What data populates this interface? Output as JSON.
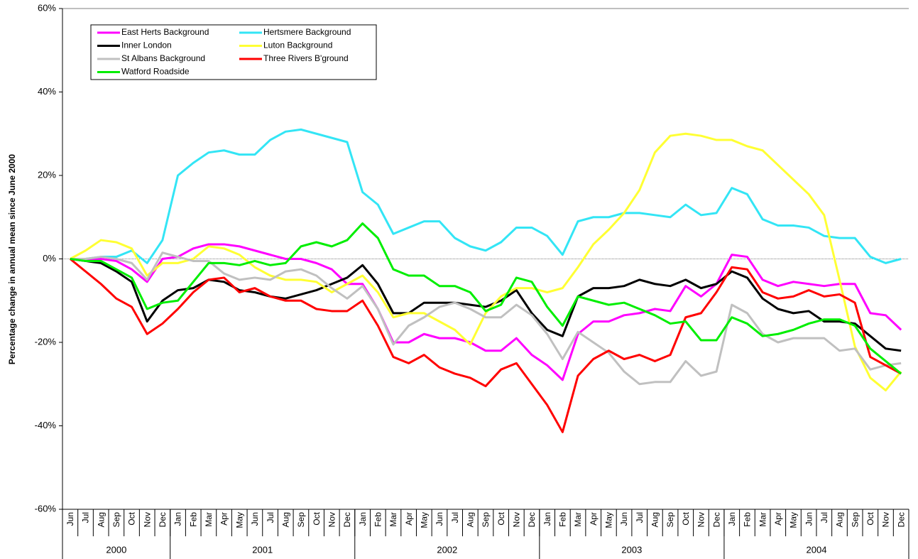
{
  "chart_data": {
    "type": "line",
    "y_label": "Percentage change in annual mean since June 2000",
    "categories": [
      "Jun",
      "Jul",
      "Aug",
      "Sep",
      "Oct",
      "Nov",
      "Dec",
      "Jan",
      "Feb",
      "Mar",
      "Apr",
      "May",
      "Jun",
      "Jul",
      "Aug",
      "Sep",
      "Oct",
      "Nov",
      "Dec",
      "Jan",
      "Feb",
      "Mar",
      "Apr",
      "May",
      "Jun",
      "Jul",
      "Aug",
      "Sep",
      "Oct",
      "Nov",
      "Dec",
      "Jan",
      "Feb",
      "Mar",
      "Apr",
      "May",
      "Jun",
      "Jul",
      "Aug",
      "Sep",
      "Oct",
      "Nov",
      "Dec",
      "Jan",
      "Feb",
      "Mar",
      "Apr",
      "May",
      "Jun",
      "Jul",
      "Aug",
      "Sep",
      "Oct",
      "Nov",
      "Dec"
    ],
    "groups": [
      {
        "label": "2000",
        "span": 7
      },
      {
        "label": "2001",
        "span": 12
      },
      {
        "label": "2002",
        "span": 12
      },
      {
        "label": "2003",
        "span": 12
      },
      {
        "label": "2004",
        "span": 12
      }
    ],
    "ylim": [
      -60,
      60
    ],
    "yticks": [
      {
        "value": -60,
        "label": "-60%"
      },
      {
        "value": -40,
        "label": "-40%"
      },
      {
        "value": -20,
        "label": "-20%"
      },
      {
        "value": 0,
        "label": "0%"
      },
      {
        "value": 20,
        "label": "20%"
      },
      {
        "value": 40,
        "label": "40%"
      },
      {
        "value": 60,
        "label": "60%"
      }
    ],
    "legend_position": "upper left",
    "series": [
      {
        "name": "East Herts Background",
        "color": "#ff00ff",
        "values": [
          0,
          0,
          0,
          -0.5,
          -2.5,
          -5.5,
          0,
          0.5,
          2.5,
          3.5,
          3.5,
          3,
          2,
          1,
          0,
          0,
          -1,
          -2.5,
          -6,
          -6,
          -12,
          -20,
          -20,
          -18,
          -19,
          -19,
          -20,
          -22,
          -22,
          -19,
          -23,
          -25.5,
          -29,
          -18,
          -15,
          -15,
          -13.5,
          -13,
          -12,
          -12.5,
          -6.5,
          -9,
          -6,
          1,
          0.5,
          -5,
          -6.5,
          -5.5,
          -6,
          -6.5,
          -6,
          -6,
          -13,
          -13.5,
          -17
        ]
      },
      {
        "name": "Hertsmere Background",
        "color": "#33e5f5",
        "values": [
          0,
          0,
          0.5,
          0.5,
          2,
          -1,
          4.5,
          20,
          23,
          25.5,
          26,
          25,
          25,
          28.5,
          30.5,
          31,
          30,
          29,
          28,
          16,
          13,
          6,
          7.5,
          9,
          9,
          5,
          3,
          2,
          4,
          7.5,
          7.5,
          5.5,
          1,
          9,
          10,
          10,
          11,
          11,
          10.5,
          10,
          13,
          10.5,
          11,
          17,
          15.5,
          9.5,
          8,
          8,
          7.5,
          5.5,
          5,
          5,
          0.5,
          -1,
          0
        ]
      },
      {
        "name": "Inner London",
        "color": "#000000",
        "values": [
          0,
          -0.5,
          -1,
          -3,
          -5.5,
          -15,
          -10,
          -7.5,
          -7,
          -5,
          -5.5,
          -7.5,
          -8,
          -9,
          -9.5,
          -8.5,
          -7.5,
          -6,
          -4.5,
          -1.5,
          -6,
          -13,
          -13,
          -10.5,
          -10.5,
          -10.5,
          -11,
          -11.5,
          -10,
          -7.5,
          -13,
          -17,
          -18.5,
          -9,
          -7,
          -7,
          -6.5,
          -5,
          -6,
          -6.5,
          -5,
          -7,
          -6,
          -3,
          -4.5,
          -9.5,
          -12,
          -13,
          -12.5,
          -15,
          -15,
          -15.5,
          -18.5,
          -21.5,
          -22
        ]
      },
      {
        "name": "Luton Background",
        "color": "#ffff33",
        "values": [
          0,
          2,
          4.5,
          4,
          2.5,
          -4,
          -1,
          -1,
          0,
          3,
          2.5,
          1,
          -2,
          -4,
          -5,
          -5,
          -5.5,
          -8,
          -6,
          -4,
          -8,
          -14,
          -13,
          -13,
          -15,
          -17,
          -20.5,
          -13,
          -9,
          -7,
          -7,
          -8,
          -7,
          -2,
          3.5,
          7,
          11,
          16.5,
          25.5,
          29.5,
          30,
          29.5,
          28.5,
          28.5,
          27,
          26,
          22.5,
          19,
          15.5,
          10.5,
          -5,
          -21,
          -28.5,
          -31.5,
          -27
        ]
      },
      {
        "name": "St Albans Background",
        "color": "#c0c0c0",
        "values": [
          0,
          0,
          0.5,
          0,
          -1,
          -5,
          1.5,
          0.5,
          -0.5,
          -0.5,
          -3.5,
          -5,
          -4.5,
          -5,
          -3,
          -2.5,
          -4,
          -7,
          -9.5,
          -6.5,
          -12,
          -20.5,
          -16,
          -14,
          -11.5,
          -10.5,
          -12,
          -14,
          -14,
          -11,
          -13.5,
          -18,
          -24,
          -17.5,
          -20,
          -22.5,
          -27,
          -30,
          -29.5,
          -29.5,
          -24.5,
          -28,
          -27,
          -11,
          -13,
          -18,
          -20,
          -19,
          -19,
          -19,
          -22,
          -21.5,
          -26.5,
          -25.5,
          -25
        ]
      },
      {
        "name": "Three Rivers B'ground",
        "color": "#ff0000",
        "values": [
          0,
          -3,
          -6,
          -9.5,
          -11.5,
          -18,
          -15.5,
          -12,
          -8,
          -5,
          -4.5,
          -8,
          -7,
          -9,
          -10,
          -10,
          -12,
          -12.5,
          -12.5,
          -10,
          -16,
          -23.5,
          -25,
          -23,
          -26,
          -27.5,
          -28.5,
          -30.5,
          -26.5,
          -25,
          -30,
          -35,
          -41.5,
          -28,
          -24,
          -22,
          -24,
          -23,
          -24.5,
          -23,
          -14,
          -13,
          -8,
          -2,
          -2.5,
          -8,
          -9.5,
          -9,
          -7.5,
          -9,
          -8.5,
          -10.5,
          -23.5,
          -25.5,
          -27.5
        ]
      },
      {
        "name": "Watford Roadside",
        "color": "#00ee00",
        "values": [
          0,
          -0.5,
          -0.5,
          -2.5,
          -4.5,
          -12,
          -10.5,
          -10,
          -5.5,
          -1,
          -1,
          -1.5,
          -0.5,
          -1.5,
          -1,
          3,
          4,
          3,
          4.5,
          8.5,
          5,
          -2.5,
          -4,
          -4,
          -6.5,
          -6.5,
          -8,
          -12.5,
          -11,
          -4.5,
          -5.5,
          -11.5,
          -16,
          -9,
          -10,
          -11,
          -10.5,
          -12,
          -13.5,
          -15.5,
          -15,
          -19.5,
          -19.5,
          -14,
          -15.5,
          -18.5,
          -18,
          -17,
          -15.5,
          -14.5,
          -14.5,
          -16,
          -21.5,
          -24.5,
          -27.5
        ]
      }
    ]
  }
}
